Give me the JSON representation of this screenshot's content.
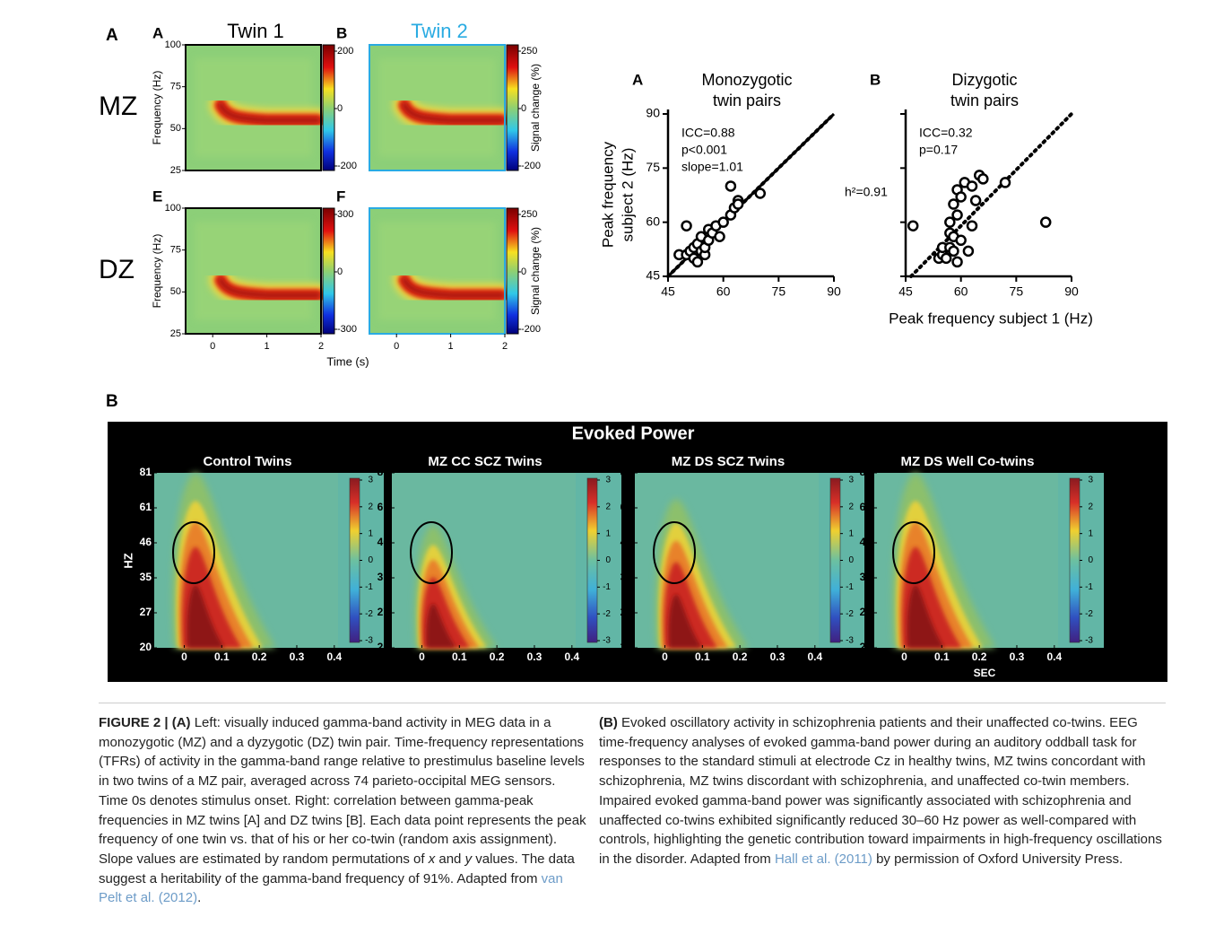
{
  "figure_a": {
    "label": "A",
    "tfr": {
      "panels": [
        {
          "label": "A",
          "title": "Twin 1",
          "colorbar_ticks": [
            200,
            0,
            -200
          ]
        },
        {
          "label": "B",
          "title": "Twin 2",
          "colorbar_ticks": [
            250,
            0,
            -200
          ]
        },
        {
          "label": "E",
          "colorbar_ticks": [
            300,
            0,
            -300
          ]
        },
        {
          "label": "F",
          "colorbar_ticks": [
            250,
            0,
            -200
          ]
        }
      ],
      "row_labels": [
        "MZ",
        "DZ"
      ],
      "ylabel": "Frequency (Hz)",
      "ylim": [
        25,
        100
      ],
      "yticks": [
        25,
        50,
        75,
        100
      ],
      "xlabel": "Time (s)",
      "xlim": [
        -0.5,
        2
      ],
      "xticks": [
        0,
        1,
        2
      ],
      "colorbar_label": "Signal change (%)"
    },
    "scatter": {
      "type": "scatter",
      "ylabel": [
        "Peak frequency",
        "subject 2 (Hz)"
      ],
      "xlabel": "Peak frequency subject 1 (Hz)",
      "xlim": [
        45,
        90
      ],
      "ylim": [
        45,
        90
      ],
      "xticks": [
        45,
        60,
        75,
        90
      ],
      "yticks": [
        45,
        60,
        75,
        90
      ],
      "panels": [
        {
          "label": "A",
          "title": [
            "Monozygotic",
            "twin pairs"
          ],
          "stats": [
            "ICC=0.88",
            "p<0.001",
            "slope=1.01"
          ],
          "x": [
            48,
            50,
            50,
            51,
            52,
            52,
            53,
            53,
            54,
            54,
            55,
            55,
            56,
            56,
            57,
            58,
            59,
            60,
            62,
            62,
            63,
            64,
            64,
            70
          ],
          "y": [
            51,
            51,
            59,
            52,
            50,
            53,
            49,
            54,
            52,
            56,
            51,
            53,
            55,
            58,
            57,
            59,
            56,
            60,
            62,
            70,
            64,
            66,
            65,
            68
          ]
        },
        {
          "label": "B",
          "title": [
            "Dizygotic",
            "twin pairs"
          ],
          "stats": [
            "ICC=0.32",
            "p=0.17"
          ],
          "annotation": "h²=0.91",
          "x": [
            47,
            54,
            55,
            55,
            56,
            57,
            57,
            57,
            58,
            58,
            58,
            59,
            59,
            59,
            60,
            60,
            61,
            62,
            63,
            63,
            64,
            65,
            66,
            72,
            83
          ],
          "y": [
            59,
            50,
            51,
            53,
            50,
            57,
            60,
            53,
            52,
            56,
            65,
            49,
            62,
            69,
            55,
            67,
            71,
            52,
            59,
            70,
            66,
            73,
            72,
            71,
            60
          ]
        }
      ]
    }
  },
  "figure_b": {
    "label": "B",
    "title": "Evoked Power",
    "panels": [
      "Control Twins",
      "MZ CC SCZ Twins",
      "MZ DS SCZ Twins",
      "MZ DS Well Co-twins"
    ],
    "ylabel": "HZ",
    "yticks": [
      20,
      27,
      35,
      46,
      61,
      81
    ],
    "xlim": [
      -0.08,
      0.41
    ],
    "xticks": [
      0,
      0.1,
      0.2,
      0.3,
      0.4
    ],
    "xlabel": "SEC",
    "colorbar_ticks": [
      3,
      2,
      1,
      0,
      -1,
      -2,
      -3
    ]
  },
  "caption": {
    "left": [
      {
        "text": "FIGURE 2 | (A)",
        "style": "bold"
      },
      {
        "text": " Left: visually induced gamma-band activity in MEG data in a monozygotic (MZ) and a dyzygotic (DZ) twin pair. Time-frequency representations (TFRs) of activity in the gamma-band range relative to prestimulus baseline levels in two twins of a MZ pair, averaged across 74 parieto-occipital MEG sensors. Time 0s denotes stimulus onset. Right: correlation between gamma-peak frequencies in MZ twins [A] and DZ twins [B]. Each data point represents the peak frequency of one twin vs. that of his or her co-twin (random axis assignment). Slope values are estimated by random permutations of ",
        "style": "normal"
      },
      {
        "text": "x",
        "style": "italic"
      },
      {
        "text": " and ",
        "style": "normal"
      },
      {
        "text": "y",
        "style": "italic"
      },
      {
        "text": " values. The data suggest a heritability of the gamma-band frequency of 91%. Adapted from ",
        "style": "normal"
      },
      {
        "text": "van Pelt et al. (2012)",
        "style": "link"
      },
      {
        "text": ".",
        "style": "normal"
      }
    ],
    "right": [
      {
        "text": "(B)",
        "style": "bold"
      },
      {
        "text": " Evoked oscillatory activity in schizophrenia patients and their unaffected co-twins. EEG time-frequency analyses of evoked gamma-band power during an auditory oddball task for responses to the standard stimuli at electrode Cz in healthy twins, MZ twins concordant with schizophrenia, MZ twins discordant with schizophrenia, and unaffected co-twin members. Impaired evoked gamma-band power was significantly associated with schizophrenia and unaffected co-twins exhibited significantly reduced 30–60 Hz power as well-compared with controls, highlighting the genetic contribution toward impairments in high-frequency oscillations in the disorder. Adapted from ",
        "style": "normal"
      },
      {
        "text": "Hall et al. (2011)",
        "style": "link"
      },
      {
        "text": " by permission of Oxford University Press.",
        "style": "normal"
      }
    ]
  }
}
